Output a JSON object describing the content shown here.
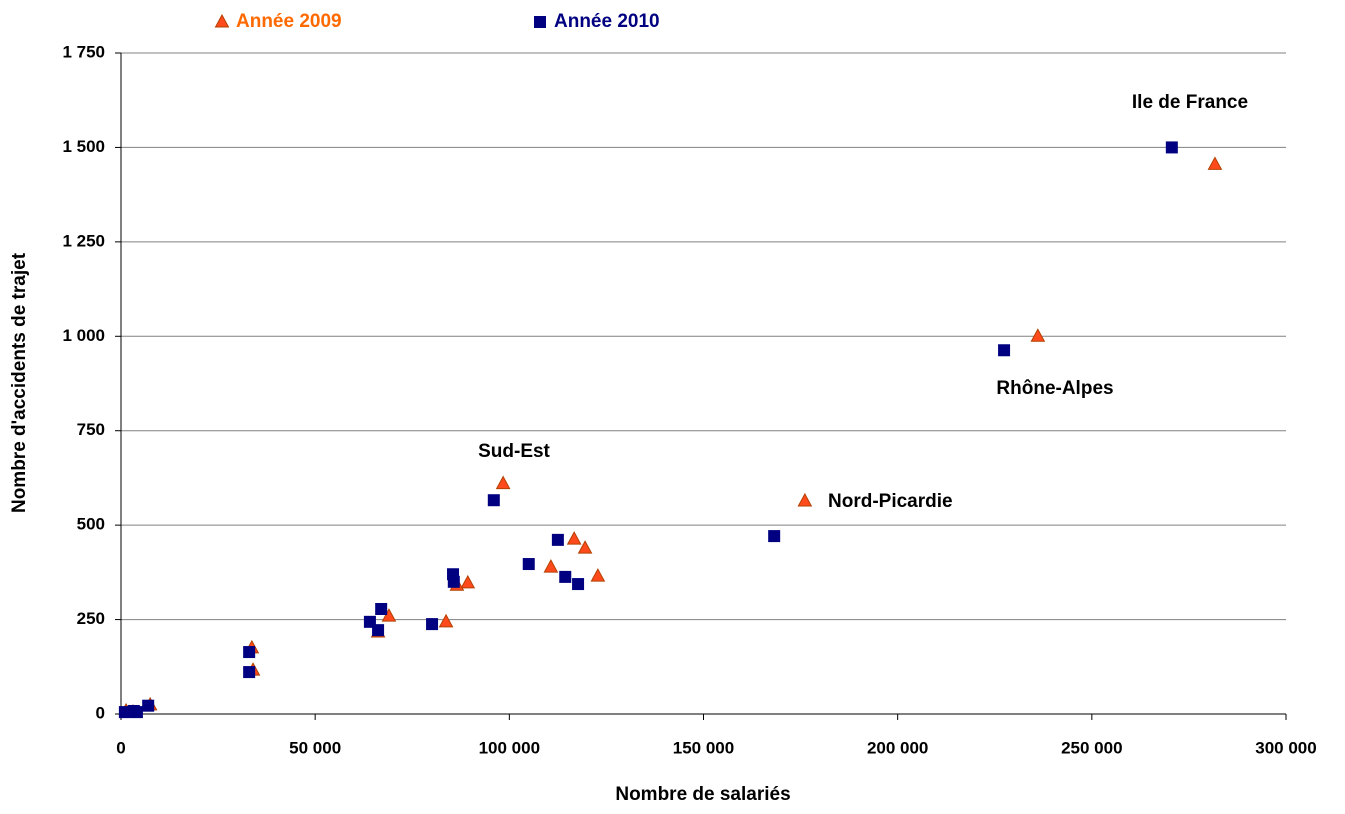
{
  "chart_data": {
    "type": "scatter",
    "x_label": "Nombre de salariés",
    "y_label": "Nombre d'accidents de trajet",
    "xlim": [
      0,
      300000
    ],
    "xticks": [
      0,
      {
        "value": 50000,
        "label": "50 000"
      },
      {
        "value": 100000,
        "label": "100 000"
      },
      {
        "value": 150000,
        "label": "150 000"
      },
      {
        "value": 200000,
        "label": "200 000"
      },
      {
        "value": 250000,
        "label": "250 000"
      },
      {
        "value": 300000,
        "label": "300 000"
      }
    ],
    "ylim": [
      0,
      1750
    ],
    "yticks": [
      0,
      250,
      500,
      750,
      {
        "value": 1000,
        "label": "1 000"
      },
      {
        "value": 1250,
        "label": "1 250"
      },
      {
        "value": 1500,
        "label": "1 500"
      },
      {
        "value": 1750,
        "label": "1 750"
      }
    ],
    "grid": true,
    "legend": "top",
    "series": [
      {
        "name": "Année 2009",
        "color": "#ff4a1c",
        "marker": "triangle",
        "x": [
          281700,
          236100,
          176100,
          98400,
          116700,
          119500,
          110700,
          122800,
          89300,
          86500,
          83700,
          69000,
          66200,
          33700,
          34000,
          7500,
          1300,
          3100
        ],
        "values": [
          1455,
          1000,
          564,
          610,
          463,
          439,
          389,
          365,
          347,
          341,
          244,
          259,
          217,
          175,
          116,
          24,
          8,
          5
        ]
      },
      {
        "name": "Année 2010",
        "color": "#000080",
        "marker": "square",
        "x": [
          270600,
          227400,
          168200,
          96000,
          105000,
          112500,
          114400,
          117700,
          85500,
          85700,
          80100,
          64100,
          67000,
          66200,
          33000,
          33000,
          7000,
          3300,
          1000,
          4100
        ],
        "values": [
          1500,
          963,
          471,
          566,
          397,
          461,
          363,
          344,
          370,
          350,
          238,
          244,
          278,
          222,
          164,
          111,
          22,
          8,
          5,
          5
        ]
      }
    ],
    "annotations": [
      {
        "text": "Ile de France"
      },
      {
        "text": "Rhône-Alpes"
      },
      {
        "text": "Sud-Est"
      },
      {
        "text": "Nord-Picardie"
      }
    ]
  }
}
